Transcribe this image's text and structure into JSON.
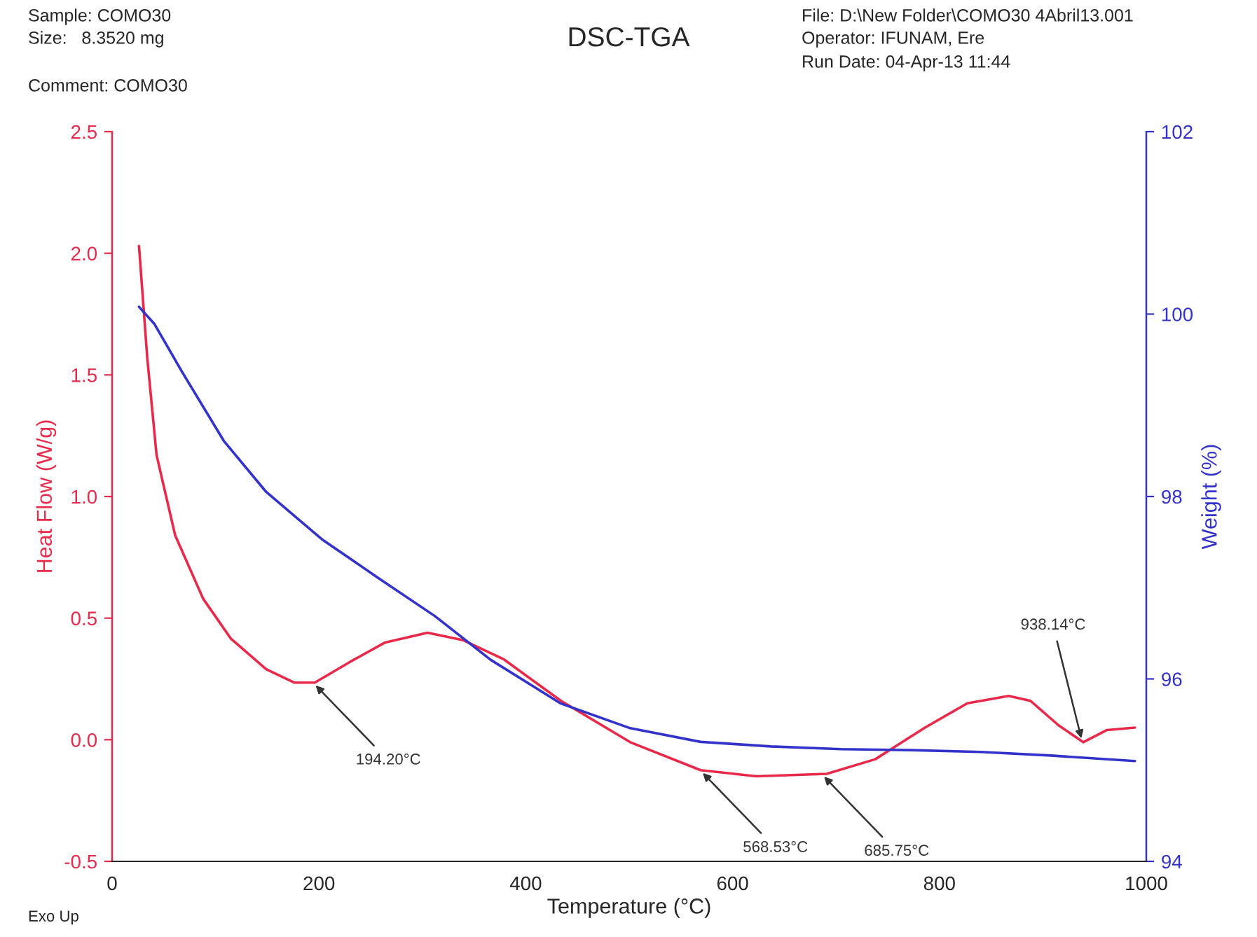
{
  "chart_data": {
    "type": "line",
    "title": "DSC-TGA",
    "xlabel": "Temperature (°C)",
    "ylabel": "Heat Flow (W/g)",
    "y2label": "Weight (%)",
    "x": [
      26,
      34,
      43,
      61,
      88,
      115,
      149,
      176,
      196,
      230,
      264,
      305,
      339,
      379,
      434,
      501,
      569,
      623,
      691,
      738,
      786,
      827,
      867,
      888,
      915,
      939,
      962,
      989
    ],
    "series": [
      {
        "name": null,
        "color": "#e8294a",
        "values": [
          2.03,
          1.57,
          1.17,
          0.84,
          0.58,
          0.415,
          0.29,
          0.235,
          0.235,
          0.32,
          0.4,
          0.44,
          0.41,
          0.33,
          0.16,
          -0.01,
          -0.125,
          -0.15,
          -0.14,
          -0.08,
          0.05,
          0.15,
          0.18,
          0.16,
          0.06,
          -0.01,
          0.04,
          0.05
        ]
      },
      {
        "name": null,
        "color": "#3333cc",
        "axis": "y2",
        "x": [
          26,
          41,
          68,
          108,
          149,
          203,
          257,
          312,
          366,
          434,
          501,
          569,
          637,
          705,
          772,
          840,
          908,
          989
        ],
        "values": [
          100.08,
          99.89,
          99.36,
          98.61,
          98.05,
          97.53,
          97.11,
          96.69,
          96.21,
          95.73,
          95.46,
          95.31,
          95.26,
          95.23,
          95.22,
          95.2,
          95.16,
          95.1
        ]
      }
    ],
    "xlim": [
      0,
      1000
    ],
    "xticks": [
      0,
      200,
      400,
      600,
      800,
      1000
    ],
    "ylim": [
      -0.5,
      2.5
    ],
    "yticks": [
      {
        "value": -0.5,
        "label": "-0.5"
      },
      {
        "value": 0,
        "label": "0.0"
      },
      {
        "value": 0.5,
        "label": "0.5"
      },
      {
        "value": 1,
        "label": "1.0"
      },
      {
        "value": 1.5,
        "label": "1.5"
      },
      {
        "value": 2,
        "label": "2.0"
      },
      {
        "value": 2.5,
        "label": "2.5"
      }
    ],
    "y2lim": [
      94,
      102
    ],
    "y2ticks": [
      94,
      96,
      98,
      100,
      102
    ],
    "grid": false,
    "annotations": [
      {
        "text": "194.20°C",
        "x": 194.2,
        "y": 0.235
      },
      {
        "text": "568.53°C",
        "x": 568.53,
        "y": -0.125
      },
      {
        "text": "685.75°C",
        "x": 685.75,
        "y": -0.14
      },
      {
        "text": "938.14°C",
        "x": 938.14,
        "y": -0.01
      },
      "Sample: COMO30",
      "Size:   8.3520 mg",
      "Comment: COMO30",
      "File: D:\\New Folder\\COMO30 4Abril13.001",
      "Operator: IFUNAM, Ere",
      "Run Date: 04-Apr-13 11:44",
      "Exo Up"
    ]
  }
}
